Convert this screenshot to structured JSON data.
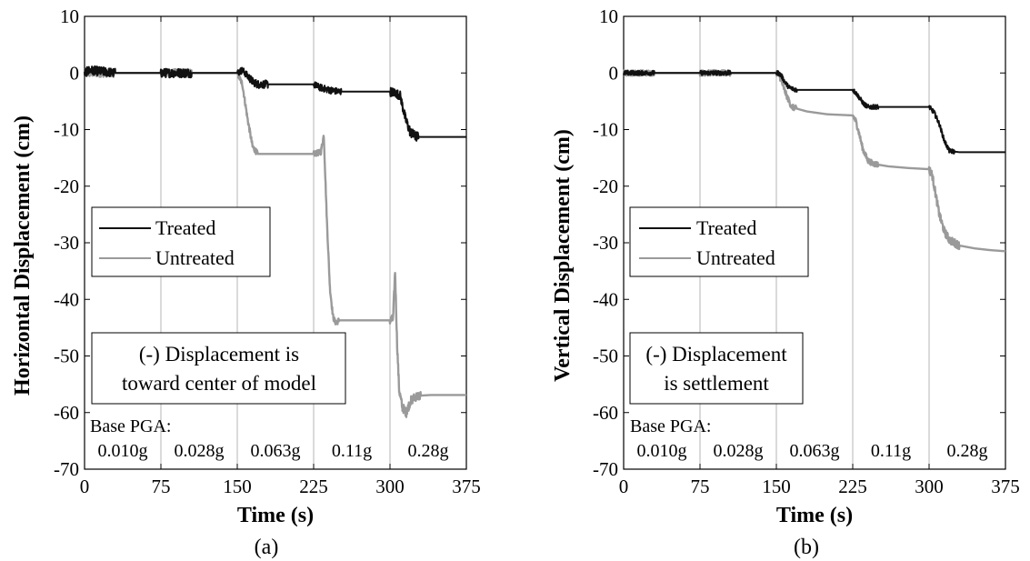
{
  "chart_data": [
    {
      "type": "line",
      "caption": "(a)",
      "xlabel": "Time (s)",
      "ylabel": "Horizontal Displacement (cm)",
      "xlim": [
        0,
        375
      ],
      "ylim": [
        -70,
        10
      ],
      "xticks": [
        0,
        75,
        150,
        225,
        300,
        375
      ],
      "yticks": [
        10,
        0,
        -10,
        -20,
        -30,
        -40,
        -50,
        -60,
        -70
      ],
      "vlines": [
        75,
        150,
        225,
        300
      ],
      "grid": false,
      "legend_position": "middle-left",
      "note": [
        "(-) Displacement is",
        "toward center of model"
      ],
      "pga_title": "Base PGA:",
      "pga_labels": [
        "0.010g",
        "0.028g",
        "0.063g",
        "0.11g",
        "0.28g"
      ],
      "series": [
        {
          "name": "Treated",
          "color": "#111111",
          "x": [
            0,
            5,
            30,
            70,
            80,
            105,
            150,
            155,
            160,
            165,
            170,
            180,
            220,
            225,
            230,
            240,
            250,
            300,
            305,
            310,
            315,
            320,
            325,
            330,
            375
          ],
          "y": [
            0,
            0.5,
            0,
            0,
            0,
            0,
            0,
            0.5,
            -0.5,
            -1.5,
            -2,
            -2,
            -2,
            -2,
            -2.5,
            -3,
            -3.3,
            -3.3,
            -3.5,
            -4,
            -8,
            -10.5,
            -11.2,
            -11.3,
            -11.3
          ],
          "noise": [
            [
              0,
              30,
              0.8
            ],
            [
              75,
              105,
              0.8
            ],
            [
              150,
              160,
              0.6
            ],
            [
              160,
              180,
              0.7
            ],
            [
              225,
              252,
              0.6
            ],
            [
              300,
              312,
              0.8
            ],
            [
              312,
              328,
              0.9
            ]
          ]
        },
        {
          "name": "Untreated",
          "color": "#9a9a9a",
          "x": [
            0,
            30,
            75,
            105,
            150,
            155,
            160,
            165,
            170,
            225,
            232,
            235,
            238,
            241,
            244,
            246,
            248,
            250,
            300,
            303,
            305,
            307,
            309,
            312,
            316,
            320,
            325,
            330,
            340,
            375
          ],
          "y": [
            0,
            0,
            0,
            0,
            0,
            -2,
            -8,
            -13,
            -14.3,
            -14.3,
            -14,
            -11,
            -26,
            -38,
            -43,
            -44,
            -44,
            -43.7,
            -43.7,
            -43.5,
            -35,
            -48,
            -56,
            -59,
            -60,
            -58,
            -57.2,
            -57,
            -56.9,
            -56.9
          ],
          "noise": [
            [
              0,
              30,
              0.7
            ],
            [
              75,
              105,
              0.7
            ],
            [
              150,
              170,
              0.5
            ],
            [
              225,
              250,
              0.5
            ],
            [
              300,
              330,
              0.8
            ]
          ]
        }
      ]
    },
    {
      "type": "line",
      "caption": "(b)",
      "xlabel": "Time (s)",
      "ylabel": "Vertical Displacement (cm)",
      "xlim": [
        0,
        375
      ],
      "ylim": [
        -70,
        10
      ],
      "xticks": [
        0,
        75,
        150,
        225,
        300,
        375
      ],
      "yticks": [
        10,
        0,
        -10,
        -20,
        -30,
        -40,
        -50,
        -60,
        -70
      ],
      "vlines": [
        75,
        150,
        225,
        300
      ],
      "grid": false,
      "legend_position": "middle-left",
      "note": [
        "(-) Displacement",
        "is settlement"
      ],
      "pga_title": "Base PGA:",
      "pga_labels": [
        "0.010g",
        "0.028g",
        "0.063g",
        "0.11g",
        "0.28g"
      ],
      "series": [
        {
          "name": "Treated",
          "color": "#111111",
          "x": [
            0,
            30,
            75,
            105,
            150,
            152,
            155,
            158,
            162,
            166,
            170,
            180,
            225,
            228,
            232,
            236,
            240,
            245,
            250,
            300,
            305,
            310,
            315,
            320,
            330,
            375
          ],
          "y": [
            0,
            0,
            0,
            0,
            0,
            0,
            -0.5,
            -1.5,
            -2.5,
            -2.8,
            -3,
            -3,
            -3,
            -3.5,
            -4.5,
            -5.5,
            -6,
            -6,
            -6,
            -6,
            -7,
            -9,
            -12,
            -13.8,
            -14,
            -14
          ],
          "noise": [
            [
              0,
              30,
              0.4
            ],
            [
              75,
              105,
              0.4
            ],
            [
              150,
              170,
              0.4
            ],
            [
              225,
              250,
              0.4
            ],
            [
              300,
              325,
              0.4
            ]
          ]
        },
        {
          "name": "Untreated",
          "color": "#9a9a9a",
          "x": [
            0,
            30,
            75,
            105,
            150,
            153,
            156,
            160,
            165,
            170,
            180,
            200,
            225,
            228,
            231,
            235,
            240,
            245,
            250,
            260,
            280,
            300,
            303,
            306,
            310,
            315,
            320,
            325,
            330,
            345,
            360,
            375
          ],
          "y": [
            0,
            0,
            0,
            0,
            0,
            -0.5,
            -2,
            -4,
            -6,
            -6.3,
            -6.8,
            -7.3,
            -7.5,
            -8.5,
            -10.5,
            -13.5,
            -15.5,
            -16,
            -16.2,
            -16.5,
            -16.8,
            -17,
            -18,
            -21,
            -25,
            -28,
            -29.5,
            -30,
            -30.5,
            -31,
            -31.3,
            -31.5
          ],
          "noise": [
            [
              0,
              30,
              0.5
            ],
            [
              75,
              105,
              0.5
            ],
            [
              150,
              170,
              0.5
            ],
            [
              225,
              250,
              0.5
            ],
            [
              300,
              330,
              0.7
            ]
          ]
        }
      ]
    }
  ]
}
